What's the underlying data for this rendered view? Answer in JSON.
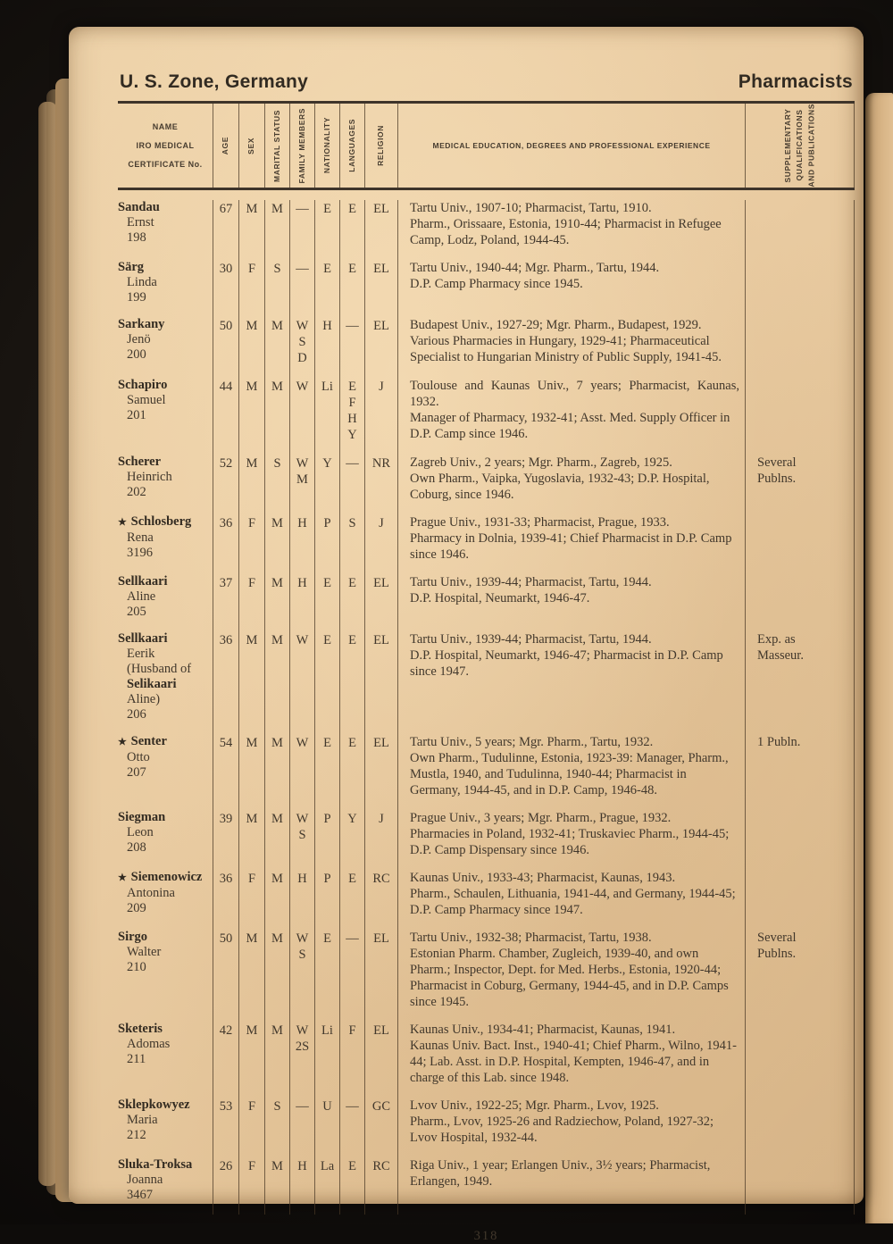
{
  "page": {
    "region_title": "U. S. Zone, Germany",
    "section_title": "Pharmacists",
    "page_number": "318"
  },
  "table": {
    "headers": {
      "name_lines": [
        "NAME",
        "IRO MEDICAL",
        "CERTIFICATE No."
      ],
      "age": "AGE",
      "sex": "SEX",
      "marital": "MARITAL STATUS",
      "family": "FAMILY MEMBERS",
      "nationality": "NATIONALITY",
      "languages": "LANGUAGES",
      "religion": "RELIGION",
      "experience": "MEDICAL EDUCATION, DEGREES AND PROFESSIONAL EXPERIENCE",
      "supplementary": "SUPPLEMENTARY\nQUALIFICATIONS\nAND PUBLICATIONS"
    },
    "rows": [
      {
        "star": false,
        "name": [
          [
            "Sandau",
            true
          ],
          [
            "Ernst",
            false
          ],
          [
            "198",
            false
          ]
        ],
        "age": "67",
        "sex": "M",
        "marital": "M",
        "family": [
          "—"
        ],
        "nationality": "E",
        "languages": [
          "E"
        ],
        "religion": "EL",
        "experience": [
          "Tartu Univ., 1907-10; Pharmacist, Tartu, 1910.",
          "Pharm., Orissaare, Estonia, 1910-44; Pharmacist in Refugee Camp, Lodz, Poland, 1944-45."
        ],
        "supplementary": ""
      },
      {
        "star": false,
        "name": [
          [
            "Särg",
            true
          ],
          [
            "Linda",
            false
          ],
          [
            "199",
            false
          ]
        ],
        "age": "30",
        "sex": "F",
        "marital": "S",
        "family": [
          "—"
        ],
        "nationality": "E",
        "languages": [
          "E"
        ],
        "religion": "EL",
        "experience": [
          "Tartu Univ., 1940-44; Mgr. Pharm., Tartu, 1944.",
          "D.P. Camp Pharmacy since 1945."
        ],
        "supplementary": ""
      },
      {
        "star": false,
        "name": [
          [
            "Sarkany",
            true
          ],
          [
            "Jenö",
            false
          ],
          [
            "200",
            false
          ]
        ],
        "age": "50",
        "sex": "M",
        "marital": "M",
        "family": [
          "W",
          "S",
          "D"
        ],
        "nationality": "H",
        "languages": [
          "—"
        ],
        "religion": "EL",
        "experience": [
          "Budapest Univ., 1927-29; Mgr. Pharm., Budapest, 1929.",
          "Various Pharmacies in Hungary, 1929-41; Pharmaceutical Specialist to Hungarian Ministry of Public Supply, 1941-45."
        ],
        "supplementary": ""
      },
      {
        "star": false,
        "name": [
          [
            "Schapiro",
            true
          ],
          [
            "Samuel",
            false
          ],
          [
            "201",
            false
          ]
        ],
        "age": "44",
        "sex": "M",
        "marital": "M",
        "family": [
          "W"
        ],
        "nationality": "Li",
        "languages": [
          "E",
          "F",
          "H",
          "Y"
        ],
        "religion": "J",
        "experience": [
          "Toulouse and Kaunas Univ., 7 years; Pharmacist, Kaunas, 1932.",
          "Manager of Pharmacy, 1932-41; Asst. Med. Supply Officer in D.P. Camp since 1946."
        ],
        "supplementary": ""
      },
      {
        "star": false,
        "name": [
          [
            "Scherer",
            true
          ],
          [
            "Heinrich",
            false
          ],
          [
            "202",
            false
          ]
        ],
        "age": "52",
        "sex": "M",
        "marital": "S",
        "family": [
          "W",
          "M"
        ],
        "nationality": "Y",
        "languages": [
          "—"
        ],
        "religion": "NR",
        "experience": [
          "Zagreb Univ., 2 years; Mgr. Pharm., Zagreb, 1925.",
          "Own Pharm., Vaipka, Yugoslavia, 1932-43; D.P. Hospital, Coburg, since 1946."
        ],
        "supplementary": "Several\nPublns."
      },
      {
        "star": true,
        "name": [
          [
            "Schlosberg",
            true
          ],
          [
            "Rena",
            false
          ],
          [
            "3196",
            false
          ]
        ],
        "age": "36",
        "sex": "F",
        "marital": "M",
        "family": [
          "H"
        ],
        "nationality": "P",
        "languages": [
          "S"
        ],
        "religion": "J",
        "experience": [
          "Prague Univ., 1931-33; Pharmacist, Prague, 1933.",
          "Pharmacy in Dolnia, 1939-41; Chief Pharmacist in D.P. Camp since 1946."
        ],
        "supplementary": ""
      },
      {
        "star": false,
        "name": [
          [
            "Sellkaari",
            true
          ],
          [
            "Aline",
            false
          ],
          [
            "205",
            false
          ]
        ],
        "age": "37",
        "sex": "F",
        "marital": "M",
        "family": [
          "H"
        ],
        "nationality": "E",
        "languages": [
          "E"
        ],
        "religion": "EL",
        "experience": [
          "Tartu Univ., 1939-44; Pharmacist, Tartu, 1944.",
          "D.P. Hospital, Neumarkt, 1946-47."
        ],
        "supplementary": ""
      },
      {
        "star": false,
        "name": [
          [
            "Sellkaari",
            true
          ],
          [
            "Eerik",
            false
          ],
          [
            "(Husband of",
            false
          ],
          [
            "Selikaari",
            true
          ],
          [
            "Aline)",
            false
          ],
          [
            "206",
            false
          ]
        ],
        "age": "36",
        "sex": "M",
        "marital": "M",
        "family": [
          "W"
        ],
        "nationality": "E",
        "languages": [
          "E"
        ],
        "religion": "EL",
        "experience": [
          "Tartu Univ., 1939-44; Pharmacist, Tartu, 1944.",
          "D.P. Hospital, Neumarkt, 1946-47; Pharmacist in D.P. Camp since 1947."
        ],
        "supplementary": "Exp. as\nMasseur."
      },
      {
        "star": true,
        "name": [
          [
            "Senter",
            true
          ],
          [
            "Otto",
            false
          ],
          [
            "207",
            false
          ]
        ],
        "age": "54",
        "sex": "M",
        "marital": "M",
        "family": [
          "W"
        ],
        "nationality": "E",
        "languages": [
          "E"
        ],
        "religion": "EL",
        "experience": [
          "Tartu Univ., 5 years; Mgr. Pharm., Tartu, 1932.",
          "Own Pharm., Tudulinne, Estonia, 1923-39: Manager, Pharm., Mustla, 1940, and Tudulinna, 1940-44; Pharmacist in Germany, 1944-45, and in D.P. Camp, 1946-48."
        ],
        "supplementary": "1 Publn."
      },
      {
        "star": false,
        "name": [
          [
            "Siegman",
            true
          ],
          [
            "Leon",
            false
          ],
          [
            "208",
            false
          ]
        ],
        "age": "39",
        "sex": "M",
        "marital": "M",
        "family": [
          "W",
          "S"
        ],
        "nationality": "P",
        "languages": [
          "Y"
        ],
        "religion": "J",
        "experience": [
          "Prague Univ., 3 years; Mgr. Pharm., Prague, 1932.",
          "Pharmacies in Poland, 1932-41; Truskaviec Pharm., 1944-45; D.P. Camp Dispensary since 1946."
        ],
        "supplementary": ""
      },
      {
        "star": true,
        "name": [
          [
            "Siemenowicz",
            true
          ],
          [
            "Antonina",
            false
          ],
          [
            "209",
            false
          ]
        ],
        "age": "36",
        "sex": "F",
        "marital": "M",
        "family": [
          "H"
        ],
        "nationality": "P",
        "languages": [
          "E"
        ],
        "religion": "RC",
        "experience": [
          "Kaunas Univ., 1933-43; Pharmacist, Kaunas, 1943.",
          "Pharm., Schaulen, Lithuania, 1941-44, and Germany, 1944-45; D.P. Camp Pharmacy since 1947."
        ],
        "supplementary": ""
      },
      {
        "star": false,
        "name": [
          [
            "Sirgo",
            true
          ],
          [
            "Walter",
            false
          ],
          [
            "210",
            false
          ]
        ],
        "age": "50",
        "sex": "M",
        "marital": "M",
        "family": [
          "W",
          "S"
        ],
        "nationality": "E",
        "languages": [
          "—"
        ],
        "religion": "EL",
        "experience": [
          "Tartu Univ., 1932-38; Pharmacist, Tartu, 1938.",
          "Estonian Pharm. Chamber, Zugleich, 1939-40, and own Pharm.; Inspector, Dept. for Med. Herbs., Estonia, 1920-44; Pharmacist in Coburg, Germany, 1944-45, and in D.P. Camps since 1945."
        ],
        "supplementary": "Several\nPublns."
      },
      {
        "star": false,
        "name": [
          [
            "Sketeris",
            true
          ],
          [
            "Adomas",
            false
          ],
          [
            "211",
            false
          ]
        ],
        "age": "42",
        "sex": "M",
        "marital": "M",
        "family": [
          "W",
          "2S"
        ],
        "nationality": "Li",
        "languages": [
          "F"
        ],
        "religion": "EL",
        "experience": [
          "Kaunas Univ., 1934-41; Pharmacist, Kaunas, 1941.",
          "Kaunas Univ. Bact. Inst., 1940-41; Chief Pharm., Wilno, 1941-44; Lab. Asst. in D.P. Hospital, Kempten, 1946-47, and in charge of this Lab. since 1948."
        ],
        "supplementary": ""
      },
      {
        "star": false,
        "name": [
          [
            "Sklepkowyez",
            true
          ],
          [
            "Maria",
            false
          ],
          [
            "212",
            false
          ]
        ],
        "age": "53",
        "sex": "F",
        "marital": "S",
        "family": [
          "—"
        ],
        "nationality": "U",
        "languages": [
          "—"
        ],
        "religion": "GC",
        "experience": [
          "Lvov Univ., 1922-25; Mgr. Pharm., Lvov, 1925.",
          "Pharm., Lvov, 1925-26 and Radziechow, Poland, 1927-32; Lvov Hospital, 1932-44."
        ],
        "supplementary": ""
      },
      {
        "star": false,
        "name": [
          [
            "Sluka-Troksa",
            true
          ],
          [
            "Joanna",
            false
          ],
          [
            "3467",
            false
          ]
        ],
        "age": "26",
        "sex": "F",
        "marital": "M",
        "family": [
          "H"
        ],
        "nationality": "La",
        "languages": [
          "E"
        ],
        "religion": "RC",
        "experience": [
          "Riga Univ., 1 year; Erlangen Univ., 3½ years; Pharmacist, Erlangen, 1949."
        ],
        "supplementary": ""
      }
    ]
  }
}
